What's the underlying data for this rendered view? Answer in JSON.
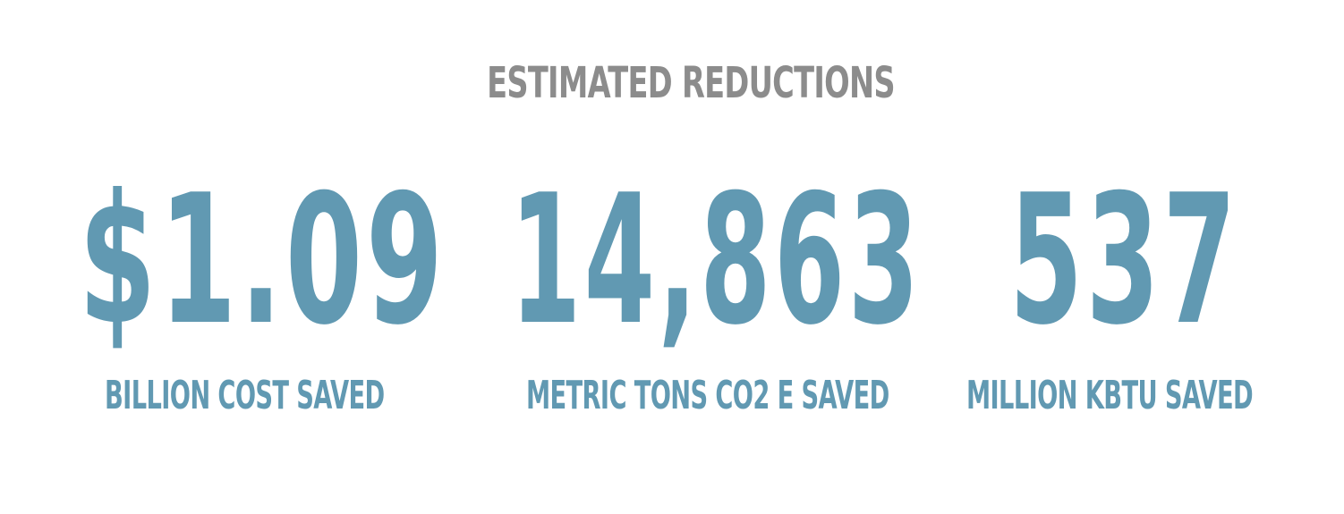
{
  "heading": "ESTIMATED REDUCTIONS",
  "stats": [
    {
      "value": "$1.09",
      "label": "BILLION COST SAVED"
    },
    {
      "value": "14,863",
      "label": "METRIC TONS CO2 E SAVED"
    },
    {
      "value": "537",
      "label": "MILLION KBTU SAVED"
    }
  ],
  "colors": {
    "heading": "#8c8c8c",
    "accent": "#6199b2",
    "background": "#ffffff"
  }
}
